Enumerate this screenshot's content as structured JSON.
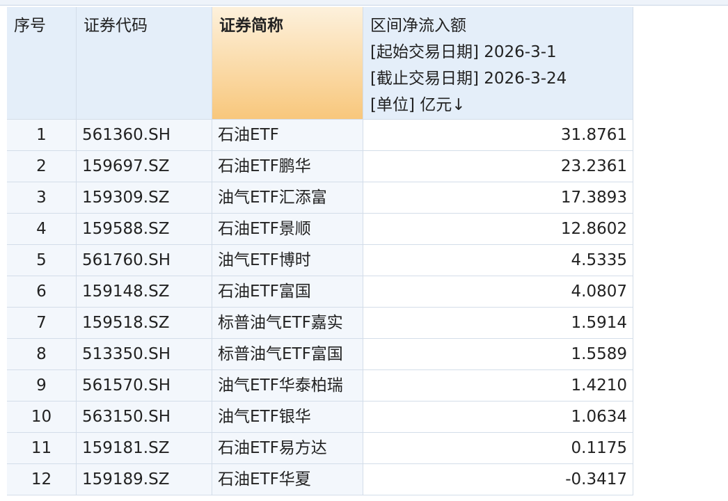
{
  "table": {
    "columns": [
      "序号",
      "证券代码",
      "证券简称",
      [
        "区间净流入额",
        "[起始交易日期] 2026-3-1",
        "[截止交易日期] 2026-3-24",
        "[单位] 亿元↓"
      ]
    ],
    "rows": [
      [
        "1",
        "561360.SH",
        "石油ETF",
        "31.8761"
      ],
      [
        "2",
        "159697.SZ",
        "石油ETF鹏华",
        "23.2361"
      ],
      [
        "3",
        "159309.SZ",
        "油气ETF汇添富",
        "17.3893"
      ],
      [
        "4",
        "159588.SZ",
        "石油ETF景顺",
        "12.8602"
      ],
      [
        "5",
        "561760.SH",
        "油气ETF博时",
        "4.5335"
      ],
      [
        "6",
        "159148.SZ",
        "石油ETF富国",
        "4.0807"
      ],
      [
        "7",
        "159518.SZ",
        "标普油气ETF嘉实",
        "1.5914"
      ],
      [
        "8",
        "513350.SH",
        "标普油气ETF富国",
        "1.5589"
      ],
      [
        "9",
        "561570.SH",
        "油气ETF华泰柏瑞",
        "1.4210"
      ],
      [
        "10",
        "563150.SH",
        "油气ETF银华",
        "1.0634"
      ],
      [
        "11",
        "159181.SZ",
        "石油ETF易方达",
        "0.1175"
      ],
      [
        "12",
        "159189.SZ",
        "石油ETF华夏",
        "-0.3417"
      ]
    ]
  }
}
